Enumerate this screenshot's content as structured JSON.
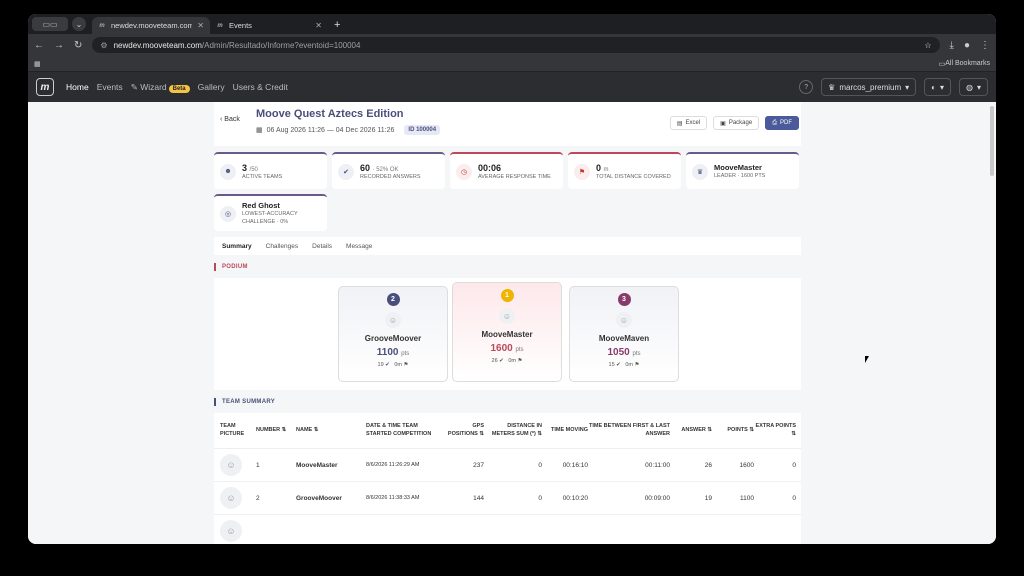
{
  "browser": {
    "tabs": [
      {
        "title": "newdev.mooveteam.com/Adi",
        "active": true
      },
      {
        "title": "Events",
        "active": false
      }
    ],
    "url_host": "newdev.mooveteam.com",
    "url_path": "/Admin/Resultado/Informe?eventoid=100004",
    "bookmarks_label": "All Bookmarks"
  },
  "nav": {
    "items": [
      "Home",
      "Events",
      "Wizard",
      "Gallery",
      "Users & Credit"
    ],
    "beta": "Beta",
    "user": "marcos_premium",
    "help": "?"
  },
  "header": {
    "back": "Back",
    "title": "Moove Quest Aztecs Edition",
    "dates": "06 Aug 2026 11:26 — 04 Dec 2026 11:26",
    "id_badge": "ID 100004",
    "buttons": {
      "excel": "Excel",
      "package": "Package",
      "pdf": "PDF"
    }
  },
  "stats": [
    {
      "value": "3",
      "suffix": "/50",
      "label": "ACTIVE TEAMS",
      "icon": "users-icon"
    },
    {
      "value": "60",
      "suffix": "· 52% OK",
      "label": "RECORDED ANSWERS",
      "icon": "check-icon"
    },
    {
      "value": "00:06",
      "suffix": "",
      "label": "AVERAGE RESPONSE TIME",
      "icon": "clock-icon"
    },
    {
      "value": "0",
      "suffix": "m",
      "label": "TOTAL DISTANCE COVERED",
      "icon": "pin-icon"
    },
    {
      "value": "MooveMaster",
      "suffix": "",
      "label": "LEADER · 1600 PTS",
      "icon": "trophy-icon"
    },
    {
      "value": "Red Ghost",
      "suffix": "",
      "label": "LOWEST-ACCURACY CHALLENGE · 0%",
      "icon": "target-icon"
    }
  ],
  "page_tabs": [
    "Summary",
    "Challenges",
    "Details",
    "Message"
  ],
  "podium": {
    "section": "PODIUM",
    "pts_unit": "pts",
    "places": [
      {
        "rank": "2",
        "name": "GrooveMoover",
        "points": "1100",
        "answers": "19",
        "distance": "0m",
        "color": "#4a4e7a"
      },
      {
        "rank": "1",
        "name": "MooveMaster",
        "points": "1600",
        "answers": "26",
        "distance": "0m",
        "color": "#f0b400"
      },
      {
        "rank": "3",
        "name": "MooveMaven",
        "points": "1050",
        "answers": "15",
        "distance": "0m",
        "color": "#8a3a6a"
      }
    ]
  },
  "team_summary": {
    "section": "TEAM SUMMARY",
    "columns": [
      "TEAM PICTURE",
      "NUMBER ⇅",
      "NAME ⇅",
      "DATE & TIME TEAM STARTED COMPETITION",
      "GPS POSITIONS ⇅",
      "DISTANCE IN METERS SUM (*) ⇅",
      "TIME MOVING",
      "TIME BETWEEN FIRST & LAST ANSWER",
      "ANSWER ⇅",
      "POINTS ⇅",
      "EXTRA POINTS ⇅"
    ],
    "rows": [
      {
        "number": "1",
        "name": "MooveMaster",
        "started": "8/6/2026 11:26:29 AM",
        "gps": "237",
        "distance": "0",
        "moving": "00:16:10",
        "between": "00:11:00",
        "answer": "26",
        "points": "1600",
        "extra": "0"
      },
      {
        "number": "2",
        "name": "GrooveMoover",
        "started": "8/6/2026 11:38:33 AM",
        "gps": "144",
        "distance": "0",
        "moving": "00:10:20",
        "between": "00:09:00",
        "answer": "19",
        "points": "1100",
        "extra": "0"
      }
    ]
  }
}
